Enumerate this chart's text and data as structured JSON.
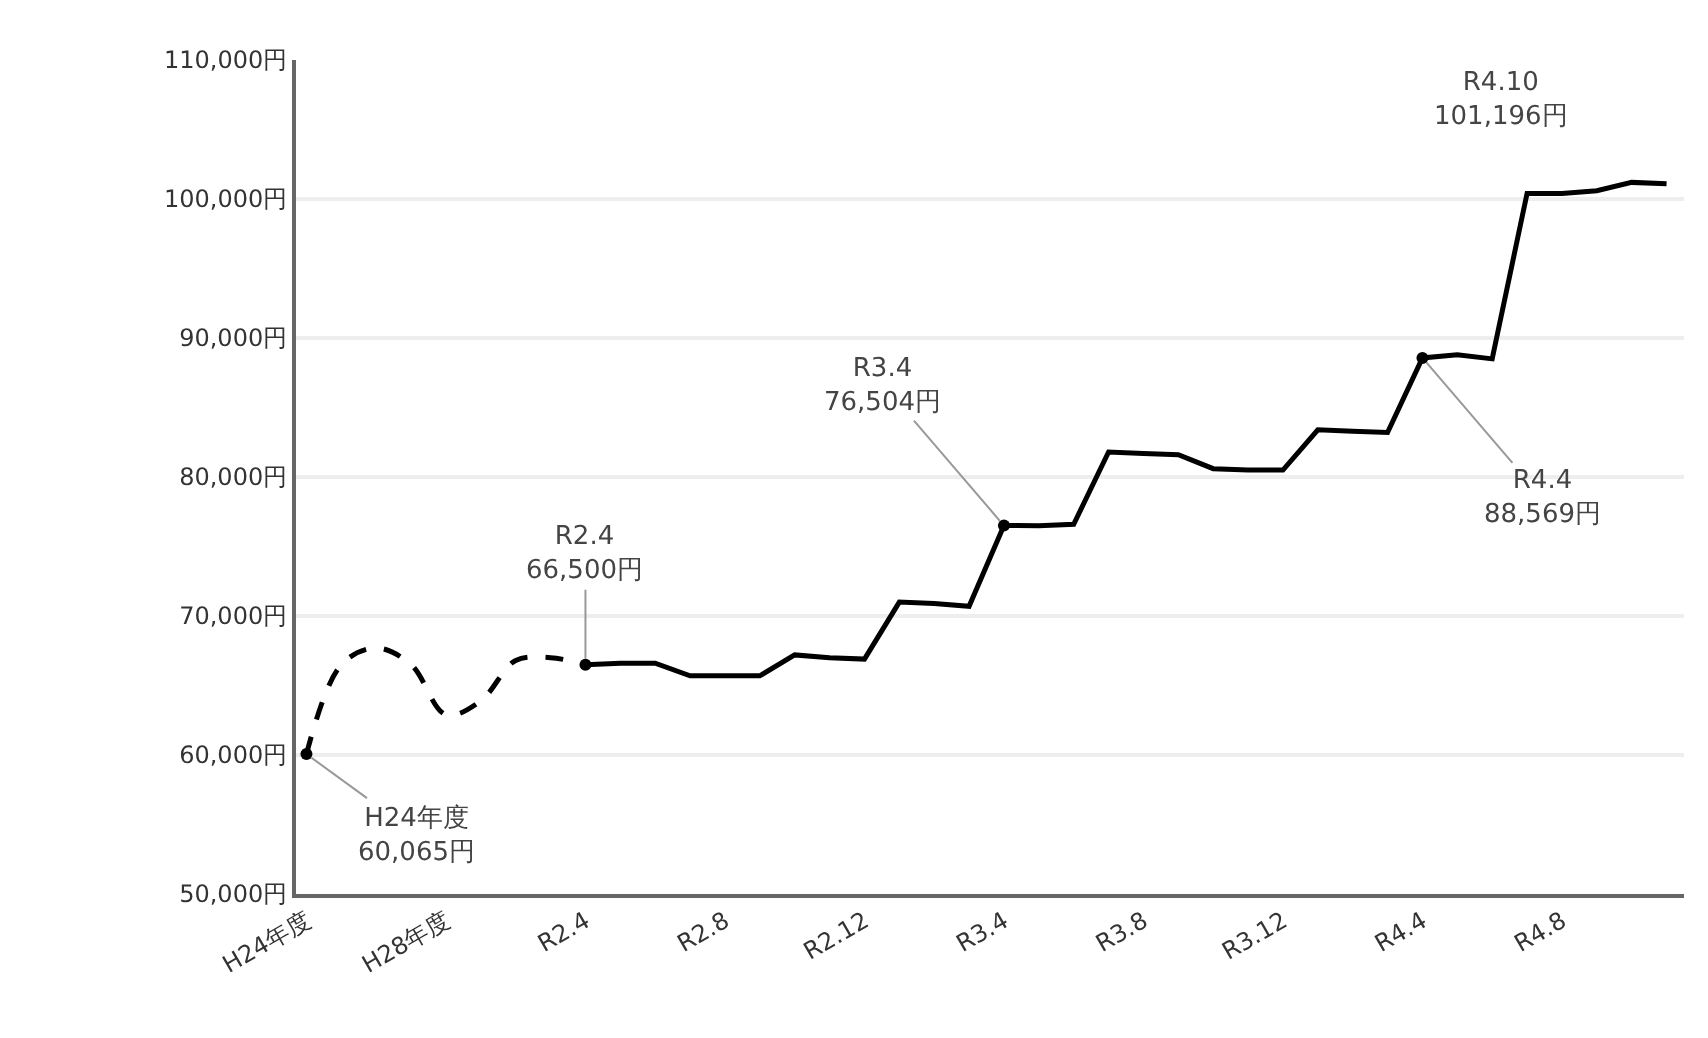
{
  "chart_data": {
    "type": "line",
    "categories": [
      "H24年度",
      null,
      null,
      null,
      "H28年度",
      null,
      null,
      null,
      "R2.4",
      null,
      null,
      null,
      "R2.8",
      null,
      null,
      null,
      "R2.12",
      null,
      null,
      null,
      "R3.4",
      null,
      null,
      null,
      "R3.8",
      null,
      null,
      null,
      "R3.12",
      null,
      null,
      null,
      "R4.4",
      null,
      null,
      null,
      "R4.8",
      null,
      null,
      null
    ],
    "series": [
      {
        "color": "#000000",
        "line_style": "dashed",
        "values": [
          60065,
          66500,
          67700,
          66500,
          62900,
          63900,
          66800,
          67000,
          66500,
          null,
          null,
          null,
          null,
          null,
          null,
          null,
          null,
          null,
          null,
          null,
          null,
          null,
          null,
          null,
          null,
          null,
          null,
          null,
          null,
          null,
          null,
          null,
          null,
          null,
          null,
          null,
          null,
          null,
          null,
          null
        ]
      },
      {
        "color": "#000000",
        "line_style": "solid",
        "values": [
          null,
          null,
          null,
          null,
          null,
          null,
          null,
          null,
          66500,
          66600,
          66600,
          65700,
          65700,
          65700,
          67200,
          67000,
          66900,
          71000,
          70900,
          70700,
          76504,
          76500,
          76600,
          81800,
          81700,
          81600,
          80600,
          80500,
          80500,
          83400,
          83300,
          83200,
          88569,
          88800,
          88500,
          100400,
          100400,
          100600,
          101196,
          101100
        ]
      }
    ],
    "ylim": [
      50000,
      110000
    ],
    "yticks": [
      {
        "value": 50000,
        "label": "50,000円"
      },
      {
        "value": 60000,
        "label": "60,000円"
      },
      {
        "value": 70000,
        "label": "70,000円"
      },
      {
        "value": 80000,
        "label": "80,000円"
      },
      {
        "value": 90000,
        "label": "90,000円"
      },
      {
        "value": 100000,
        "label": "100,000円"
      },
      {
        "value": 110000,
        "label": "110,000円"
      }
    ],
    "grid": "y",
    "annotations": [
      {
        "text": "H24年度\n60,065円",
        "x": "H24年度",
        "y": 60065
      },
      {
        "text": "R2.4\n66,500円",
        "x": "R2.4",
        "y": 66500
      },
      {
        "text": "R3.4\n76,504円",
        "x": "R3.4",
        "y": 76504
      },
      {
        "text": "R4.4\n88,569円",
        "x": "R4.4",
        "y": 88569
      },
      "R4.10\n101,196円"
    ]
  }
}
